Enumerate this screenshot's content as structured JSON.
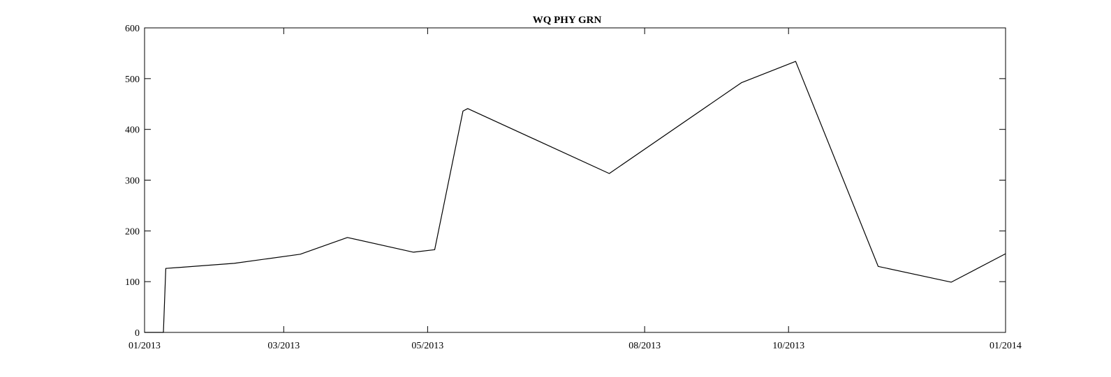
{
  "chart_data": {
    "type": "line",
    "title": "WQ PHY GRN",
    "xlabel": "",
    "ylabel": "",
    "grid": false,
    "legend": "none",
    "line_color": "#000000",
    "xlim": [
      "2013-01-01",
      "2014-01-01"
    ],
    "ylim": [
      0,
      600
    ],
    "x_ticks": [
      {
        "date": "2013-01-01",
        "label": "01/2013"
      },
      {
        "date": "2013-03-01",
        "label": "03/2013"
      },
      {
        "date": "2013-05-01",
        "label": "05/2013"
      },
      {
        "date": "2013-08-01",
        "label": "08/2013"
      },
      {
        "date": "2013-10-01",
        "label": "10/2013"
      },
      {
        "date": "2014-01-01",
        "label": "01/2014"
      }
    ],
    "y_ticks": [
      0,
      100,
      200,
      300,
      400,
      500,
      600
    ],
    "series": [
      {
        "points": [
          [
            "2013-01-01",
            0
          ],
          [
            "2013-01-09",
            0
          ],
          [
            "2013-01-10",
            126
          ],
          [
            "2013-02-08",
            136
          ],
          [
            "2013-03-08",
            154
          ],
          [
            "2013-03-28",
            187
          ],
          [
            "2013-04-25",
            158
          ],
          [
            "2013-05-04",
            163
          ],
          [
            "2013-05-16",
            436
          ],
          [
            "2013-05-18",
            441
          ],
          [
            "2013-07-17",
            313
          ],
          [
            "2013-09-11",
            492
          ],
          [
            "2013-10-04",
            534
          ],
          [
            "2013-11-08",
            130
          ],
          [
            "2013-12-09",
            99
          ],
          [
            "2014-01-01",
            155
          ]
        ]
      }
    ]
  }
}
